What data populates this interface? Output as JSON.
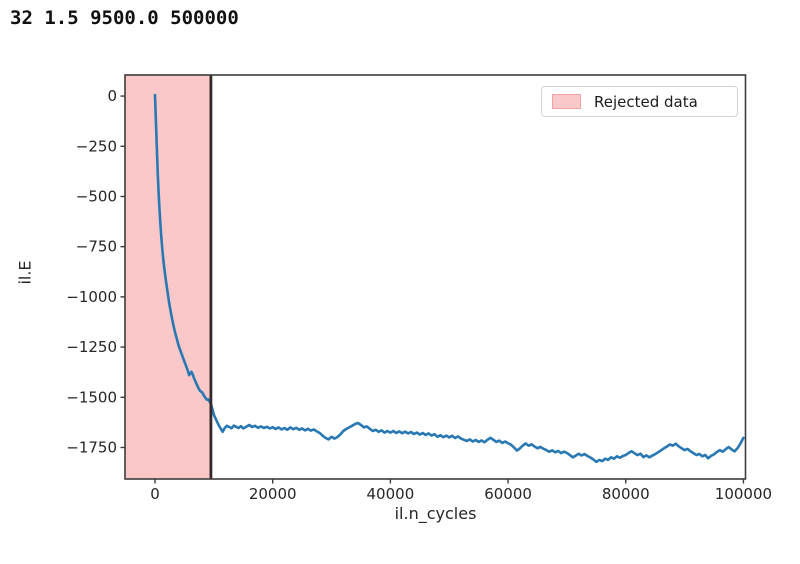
{
  "stdout_text": "32 1.5 9500.0 500000",
  "chart_data": {
    "type": "line",
    "title": "",
    "xlabel": "il.n_cycles",
    "ylabel": "il.E",
    "grid": false,
    "x_axis": {
      "range": [
        -5100,
        100350
      ],
      "tick_values": [
        0,
        20000,
        40000,
        60000,
        80000,
        100000
      ],
      "tick_labels": [
        "0",
        "20000",
        "40000",
        "60000",
        "80000",
        "100000"
      ]
    },
    "y_axis": {
      "range": [
        -1907,
        105
      ],
      "tick_values": [
        0,
        -250,
        -500,
        -750,
        -1000,
        -1250,
        -1500,
        -1750
      ],
      "tick_labels": [
        "0",
        "−250",
        "−500",
        "−750",
        "−1000",
        "−1250",
        "−1500",
        "−1750"
      ]
    },
    "legend": {
      "position": "upper right",
      "items": [
        {
          "label": "Rejected data"
        }
      ]
    },
    "rejected_region": {
      "x_end": 9500
    },
    "cutoff_line_x": 9500,
    "colors": {
      "line": "#2878b4",
      "rejected_fill": "#fac8c8",
      "rejected_swatch_border": "#f0a4a4",
      "cutoff_line": "#342a2a",
      "spine": "#3c3c3c",
      "tick": "#3c3c3c",
      "text": "#262626"
    },
    "series": [
      {
        "name": "il.E",
        "points": [
          [
            0,
            5
          ],
          [
            120,
            -95
          ],
          [
            240,
            -195
          ],
          [
            360,
            -295
          ],
          [
            480,
            -390
          ],
          [
            600,
            -470
          ],
          [
            750,
            -555
          ],
          [
            900,
            -630
          ],
          [
            1050,
            -695
          ],
          [
            1200,
            -750
          ],
          [
            1400,
            -810
          ],
          [
            1600,
            -862
          ],
          [
            1800,
            -908
          ],
          [
            2000,
            -950
          ],
          [
            2200,
            -990
          ],
          [
            2400,
            -1028
          ],
          [
            2600,
            -1062
          ],
          [
            2800,
            -1094
          ],
          [
            3000,
            -1124
          ],
          [
            3200,
            -1150
          ],
          [
            3400,
            -1175
          ],
          [
            3600,
            -1198
          ],
          [
            3800,
            -1220
          ],
          [
            4000,
            -1240
          ],
          [
            4200,
            -1258
          ],
          [
            4400,
            -1275
          ],
          [
            4600,
            -1291
          ],
          [
            4800,
            -1307
          ],
          [
            5000,
            -1322
          ],
          [
            5200,
            -1338
          ],
          [
            5400,
            -1353
          ],
          [
            5600,
            -1370
          ],
          [
            5800,
            -1390
          ],
          [
            6000,
            -1381
          ],
          [
            6200,
            -1373
          ],
          [
            6400,
            -1386
          ],
          [
            6600,
            -1402
          ],
          [
            6800,
            -1416
          ],
          [
            7000,
            -1430
          ],
          [
            7200,
            -1443
          ],
          [
            7400,
            -1456
          ],
          [
            7600,
            -1466
          ],
          [
            7800,
            -1471
          ],
          [
            8000,
            -1475
          ],
          [
            8200,
            -1486
          ],
          [
            8400,
            -1495
          ],
          [
            8600,
            -1504
          ],
          [
            8800,
            -1512
          ],
          [
            9000,
            -1510
          ],
          [
            9250,
            -1520
          ],
          [
            9500,
            -1532
          ],
          [
            9750,
            -1560
          ],
          [
            10000,
            -1588
          ],
          [
            10400,
            -1612
          ],
          [
            10800,
            -1638
          ],
          [
            11200,
            -1658
          ],
          [
            11500,
            -1672
          ],
          [
            11800,
            -1655
          ],
          [
            12200,
            -1642
          ],
          [
            12600,
            -1648
          ],
          [
            13000,
            -1654
          ],
          [
            13400,
            -1641
          ],
          [
            13800,
            -1647
          ],
          [
            14200,
            -1653
          ],
          [
            14600,
            -1644
          ],
          [
            15000,
            -1655
          ],
          [
            15500,
            -1647
          ],
          [
            16000,
            -1638
          ],
          [
            16500,
            -1648
          ],
          [
            17000,
            -1642
          ],
          [
            17500,
            -1652
          ],
          [
            18000,
            -1645
          ],
          [
            18500,
            -1653
          ],
          [
            19000,
            -1647
          ],
          [
            19500,
            -1655
          ],
          [
            20000,
            -1649
          ],
          [
            20500,
            -1658
          ],
          [
            21000,
            -1650
          ],
          [
            21500,
            -1660
          ],
          [
            22000,
            -1653
          ],
          [
            22500,
            -1662
          ],
          [
            23000,
            -1650
          ],
          [
            23500,
            -1659
          ],
          [
            24000,
            -1652
          ],
          [
            24500,
            -1662
          ],
          [
            25000,
            -1655
          ],
          [
            25500,
            -1665
          ],
          [
            26000,
            -1657
          ],
          [
            26500,
            -1666
          ],
          [
            27000,
            -1660
          ],
          [
            27500,
            -1670
          ],
          [
            28000,
            -1678
          ],
          [
            28500,
            -1692
          ],
          [
            29000,
            -1703
          ],
          [
            29500,
            -1710
          ],
          [
            30000,
            -1697
          ],
          [
            30500,
            -1706
          ],
          [
            31000,
            -1698
          ],
          [
            31500,
            -1685
          ],
          [
            32000,
            -1668
          ],
          [
            32500,
            -1658
          ],
          [
            33000,
            -1650
          ],
          [
            33500,
            -1642
          ],
          [
            34000,
            -1633
          ],
          [
            34500,
            -1628
          ],
          [
            35000,
            -1638
          ],
          [
            35500,
            -1650
          ],
          [
            36000,
            -1645
          ],
          [
            36500,
            -1657
          ],
          [
            37000,
            -1668
          ],
          [
            37500,
            -1662
          ],
          [
            38000,
            -1672
          ],
          [
            38500,
            -1665
          ],
          [
            39000,
            -1676
          ],
          [
            39500,
            -1668
          ],
          [
            40000,
            -1676
          ],
          [
            40500,
            -1668
          ],
          [
            41000,
            -1678
          ],
          [
            41500,
            -1670
          ],
          [
            42000,
            -1679
          ],
          [
            42500,
            -1671
          ],
          [
            43000,
            -1680
          ],
          [
            43500,
            -1673
          ],
          [
            44000,
            -1683
          ],
          [
            44500,
            -1676
          ],
          [
            45000,
            -1686
          ],
          [
            45500,
            -1678
          ],
          [
            46000,
            -1688
          ],
          [
            46500,
            -1680
          ],
          [
            47000,
            -1691
          ],
          [
            47500,
            -1684
          ],
          [
            48000,
            -1697
          ],
          [
            48500,
            -1689
          ],
          [
            49000,
            -1699
          ],
          [
            49500,
            -1691
          ],
          [
            50000,
            -1700
          ],
          [
            50500,
            -1692
          ],
          [
            51000,
            -1703
          ],
          [
            51500,
            -1695
          ],
          [
            52000,
            -1706
          ],
          [
            52500,
            -1712
          ],
          [
            53000,
            -1718
          ],
          [
            53500,
            -1710
          ],
          [
            54000,
            -1720
          ],
          [
            54500,
            -1713
          ],
          [
            55000,
            -1722
          ],
          [
            55500,
            -1715
          ],
          [
            56000,
            -1724
          ],
          [
            56500,
            -1712
          ],
          [
            57000,
            -1702
          ],
          [
            57500,
            -1712
          ],
          [
            58000,
            -1722
          ],
          [
            58500,
            -1716
          ],
          [
            59000,
            -1727
          ],
          [
            59500,
            -1720
          ],
          [
            60000,
            -1729
          ],
          [
            60500,
            -1736
          ],
          [
            61000,
            -1750
          ],
          [
            61500,
            -1765
          ],
          [
            62000,
            -1755
          ],
          [
            62500,
            -1740
          ],
          [
            63000,
            -1730
          ],
          [
            63500,
            -1741
          ],
          [
            64000,
            -1734
          ],
          [
            64500,
            -1745
          ],
          [
            65000,
            -1754
          ],
          [
            65500,
            -1747
          ],
          [
            66000,
            -1756
          ],
          [
            66500,
            -1763
          ],
          [
            67000,
            -1771
          ],
          [
            67500,
            -1764
          ],
          [
            68000,
            -1774
          ],
          [
            68500,
            -1767
          ],
          [
            69000,
            -1778
          ],
          [
            69500,
            -1771
          ],
          [
            70000,
            -1777
          ],
          [
            70500,
            -1788
          ],
          [
            71000,
            -1799
          ],
          [
            71500,
            -1791
          ],
          [
            72000,
            -1781
          ],
          [
            72500,
            -1790
          ],
          [
            73000,
            -1783
          ],
          [
            73500,
            -1793
          ],
          [
            74000,
            -1800
          ],
          [
            74500,
            -1810
          ],
          [
            75000,
            -1822
          ],
          [
            75500,
            -1812
          ],
          [
            76000,
            -1818
          ],
          [
            76500,
            -1806
          ],
          [
            77000,
            -1812
          ],
          [
            77500,
            -1799
          ],
          [
            78000,
            -1806
          ],
          [
            78500,
            -1794
          ],
          [
            79000,
            -1801
          ],
          [
            79500,
            -1793
          ],
          [
            80000,
            -1787
          ],
          [
            80500,
            -1777
          ],
          [
            81000,
            -1769
          ],
          [
            81500,
            -1779
          ],
          [
            82000,
            -1788
          ],
          [
            82500,
            -1781
          ],
          [
            83000,
            -1798
          ],
          [
            83500,
            -1789
          ],
          [
            84000,
            -1799
          ],
          [
            84500,
            -1791
          ],
          [
            85000,
            -1783
          ],
          [
            85500,
            -1774
          ],
          [
            86000,
            -1764
          ],
          [
            86500,
            -1754
          ],
          [
            87000,
            -1745
          ],
          [
            87500,
            -1735
          ],
          [
            88000,
            -1741
          ],
          [
            88500,
            -1731
          ],
          [
            89000,
            -1744
          ],
          [
            89500,
            -1754
          ],
          [
            90000,
            -1763
          ],
          [
            90500,
            -1757
          ],
          [
            91000,
            -1769
          ],
          [
            91500,
            -1778
          ],
          [
            92000,
            -1788
          ],
          [
            92500,
            -1782
          ],
          [
            93000,
            -1794
          ],
          [
            93500,
            -1787
          ],
          [
            94000,
            -1804
          ],
          [
            94500,
            -1792
          ],
          [
            95000,
            -1784
          ],
          [
            95500,
            -1772
          ],
          [
            96000,
            -1763
          ],
          [
            96500,
            -1771
          ],
          [
            97000,
            -1758
          ],
          [
            97500,
            -1748
          ],
          [
            98000,
            -1760
          ],
          [
            98500,
            -1769
          ],
          [
            99000,
            -1753
          ],
          [
            99500,
            -1730
          ],
          [
            100000,
            -1702
          ]
        ]
      }
    ]
  }
}
